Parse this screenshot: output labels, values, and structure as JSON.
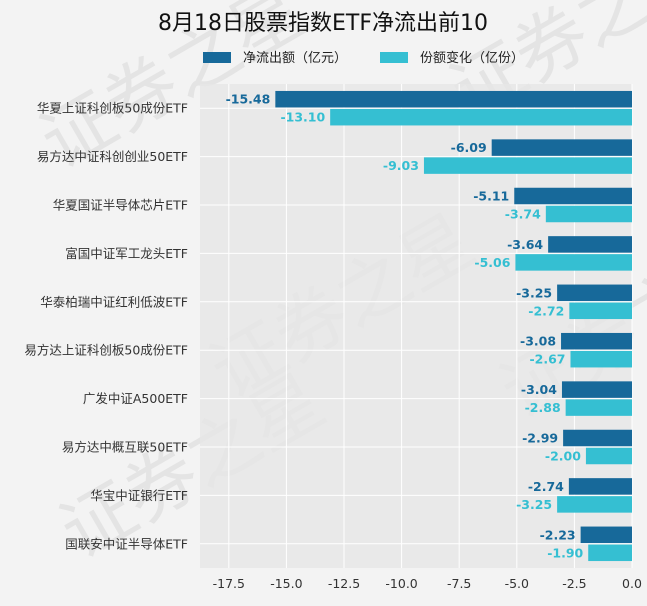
{
  "chart_data": {
    "type": "bar",
    "orientation": "horizontal",
    "title": "8月18日股票指数ETF净流出前10",
    "categories": [
      "华夏上证科创板50成份ETF",
      "易方达中证科创创业50ETF",
      "华夏国证半导体芯片ETF",
      "富国中证军工龙头ETF",
      "华泰柏瑞中证红利低波ETF",
      "易方达上证科创板50成份ETF",
      "广发中证A500ETF",
      "易方达中概互联50ETF",
      "华宝中证银行ETF",
      "国联安中证半导体ETF"
    ],
    "series": [
      {
        "name": "净流出额（亿元）",
        "color": "#17699a",
        "values": [
          -15.48,
          -6.09,
          -5.11,
          -3.64,
          -3.25,
          -3.08,
          -3.04,
          -2.99,
          -2.74,
          -2.23
        ],
        "labels": [
          "-15.48",
          "-6.09",
          "-5.11",
          "-3.64",
          "-3.25",
          "-3.08",
          "-3.04",
          "-2.99",
          "-2.74",
          "-2.23"
        ]
      },
      {
        "name": "份额变化（亿份）",
        "color": "#35bfd2",
        "values": [
          -13.1,
          -9.03,
          -3.74,
          -5.06,
          -2.72,
          -2.67,
          -2.88,
          -2.0,
          -3.25,
          -1.9
        ],
        "labels": [
          "-13.10",
          "-9.03",
          "-3.74",
          "-5.06",
          "-2.72",
          "-2.67",
          "-2.88",
          "-2.00",
          "-3.25",
          "-1.90"
        ]
      }
    ],
    "xlim": [
      -18.75,
      0
    ],
    "xticks": [
      -17.5,
      -15.0,
      -12.5,
      -10.0,
      -7.5,
      -5.0,
      -2.5,
      0.0
    ],
    "xtick_labels": [
      "-17.5",
      "-15.0",
      "-12.5",
      "-10.0",
      "-7.5",
      "-5.0",
      "-2.5",
      "0.0"
    ],
    "grid": true,
    "legend_position": "top"
  },
  "watermark": "证券之星"
}
